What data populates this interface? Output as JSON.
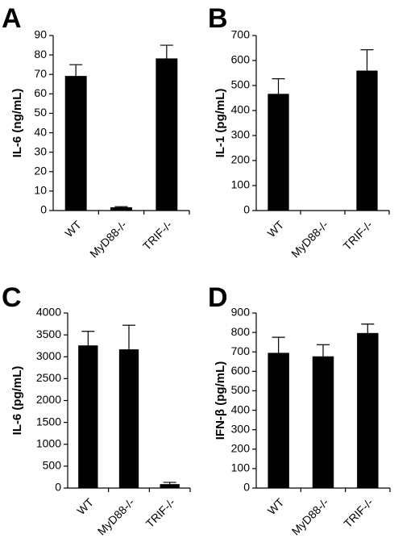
{
  "chart_data": [
    {
      "panel": "A",
      "type": "bar",
      "ylabel": "IL-6 (ng/mL)",
      "categories": [
        "WT",
        "MyD88-/-",
        "TRIF-/-"
      ],
      "values": [
        69,
        1.5,
        78
      ],
      "errors": [
        6,
        0.5,
        7
      ],
      "ylim": [
        0,
        90
      ],
      "yticks": [
        0,
        10,
        20,
        30,
        40,
        50,
        60,
        70,
        80,
        90
      ]
    },
    {
      "panel": "B",
      "type": "bar",
      "ylabel": "IL-1 (pg/mL)",
      "categories": [
        "WT",
        "MyD88-/-",
        "TRIF-/-"
      ],
      "values": [
        465,
        0,
        558
      ],
      "errors": [
        62,
        0,
        85
      ],
      "ylim": [
        0,
        700
      ],
      "yticks": [
        0,
        100,
        200,
        300,
        400,
        500,
        600,
        700
      ]
    },
    {
      "panel": "C",
      "type": "bar",
      "ylabel": "IL-6 (pg/mL)",
      "categories": [
        "WT",
        "MyD88-/-",
        "TRIF-/-"
      ],
      "values": [
        3250,
        3160,
        80
      ],
      "errors": [
        330,
        560,
        50
      ],
      "ylim": [
        0,
        4000
      ],
      "yticks": [
        0,
        500,
        1000,
        1500,
        2000,
        2500,
        3000,
        3500,
        4000
      ]
    },
    {
      "panel": "D",
      "type": "bar",
      "ylabel": "IFN-β (pg/mL)",
      "categories": [
        "WT",
        "MyD88-/-",
        "TRIF-/-"
      ],
      "values": [
        693,
        675,
        795
      ],
      "errors": [
        82,
        62,
        48
      ],
      "ylim": [
        0,
        900
      ],
      "yticks": [
        0,
        100,
        200,
        300,
        400,
        500,
        600,
        700,
        800,
        900
      ]
    }
  ],
  "style": {
    "bar_color": "#000000",
    "axis_color": "#000000",
    "background": "#ffffff"
  }
}
